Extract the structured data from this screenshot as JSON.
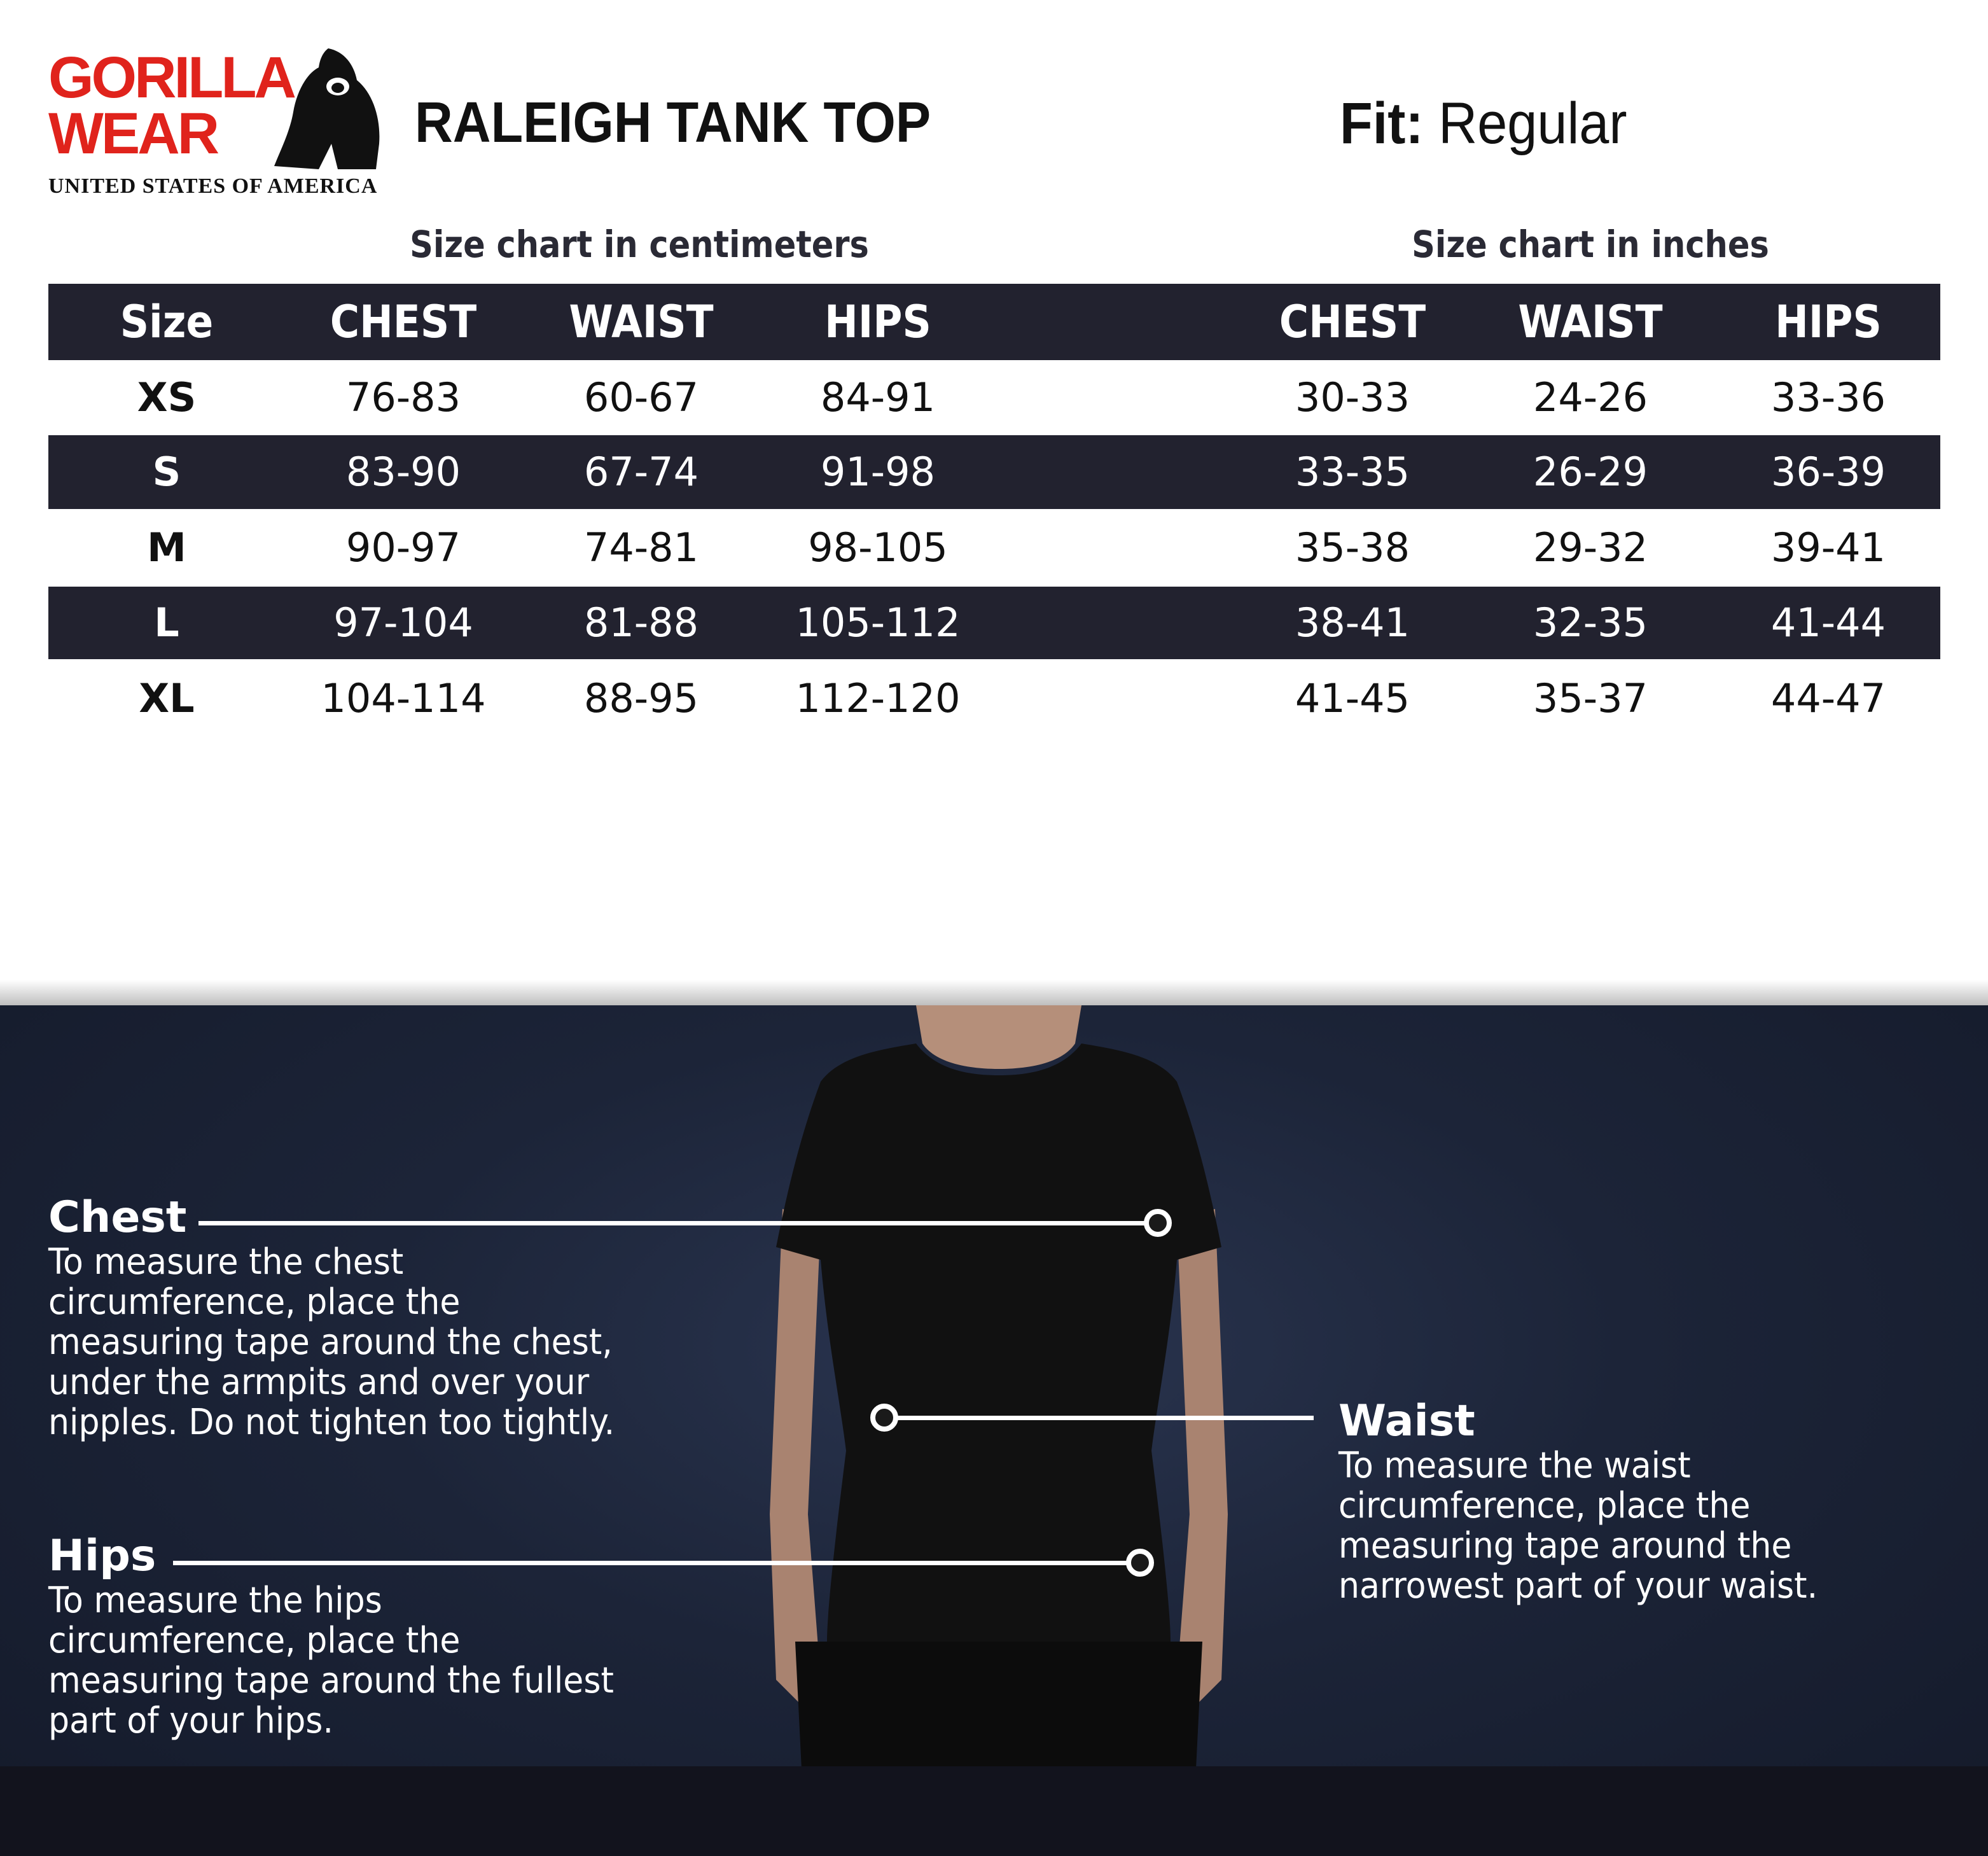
{
  "brand": {
    "line1": "GORILLA",
    "line2": "WEAR",
    "tagline": "UNITED STATES OF AMERICA",
    "colors": {
      "red": "#e0231c"
    }
  },
  "product_title": "RALEIGH TANK TOP",
  "fit": {
    "label": "Fit:",
    "value": "Regular"
  },
  "cm_table": {
    "caption": "Size chart in centimeters"
  },
  "in_table": {
    "caption": "Size chart in inches"
  },
  "headers": {
    "size": "Size",
    "chest": "CHEST",
    "waist": "WAIST",
    "hips": "HIPS"
  },
  "rows": [
    {
      "size": "XS",
      "cm": [
        "76-83",
        "60-67",
        "84-91"
      ],
      "in": [
        "30-33",
        "24-26",
        "33-36"
      ]
    },
    {
      "size": "S",
      "cm": [
        "83-90",
        "67-74",
        "91-98"
      ],
      "in": [
        "33-35",
        "26-29",
        "36-39"
      ]
    },
    {
      "size": "M",
      "cm": [
        "90-97",
        "74-81",
        "98-105"
      ],
      "in": [
        "35-38",
        "29-32",
        "39-41"
      ]
    },
    {
      "size": "L",
      "cm": [
        "97-104",
        "81-88",
        "105-112"
      ],
      "in": [
        "38-41",
        "32-35",
        "41-44"
      ]
    },
    {
      "size": "XL",
      "cm": [
        "104-114",
        "88-95",
        "112-120"
      ],
      "in": [
        "41-45",
        "35-37",
        "44-47"
      ]
    }
  ],
  "measure": {
    "chest": {
      "title": "Chest",
      "lines": [
        "To measure the chest",
        "circumference, place the",
        "measuring tape around the chest,",
        "under the armpits and over your",
        "nipples. Do not tighten too tightly."
      ]
    },
    "waist": {
      "title": "Waist",
      "lines": [
        "To measure the waist",
        "circumference, place the",
        "measuring tape around the",
        "narrowest part of your waist."
      ]
    },
    "hips": {
      "title": "Hips",
      "lines": [
        "To measure the hips",
        "circumference, place the",
        "measuring tape around the fullest",
        "part of your hips."
      ]
    }
  },
  "colors": {
    "table_dark": "#22222f",
    "background_bottom": "#1c2438"
  }
}
